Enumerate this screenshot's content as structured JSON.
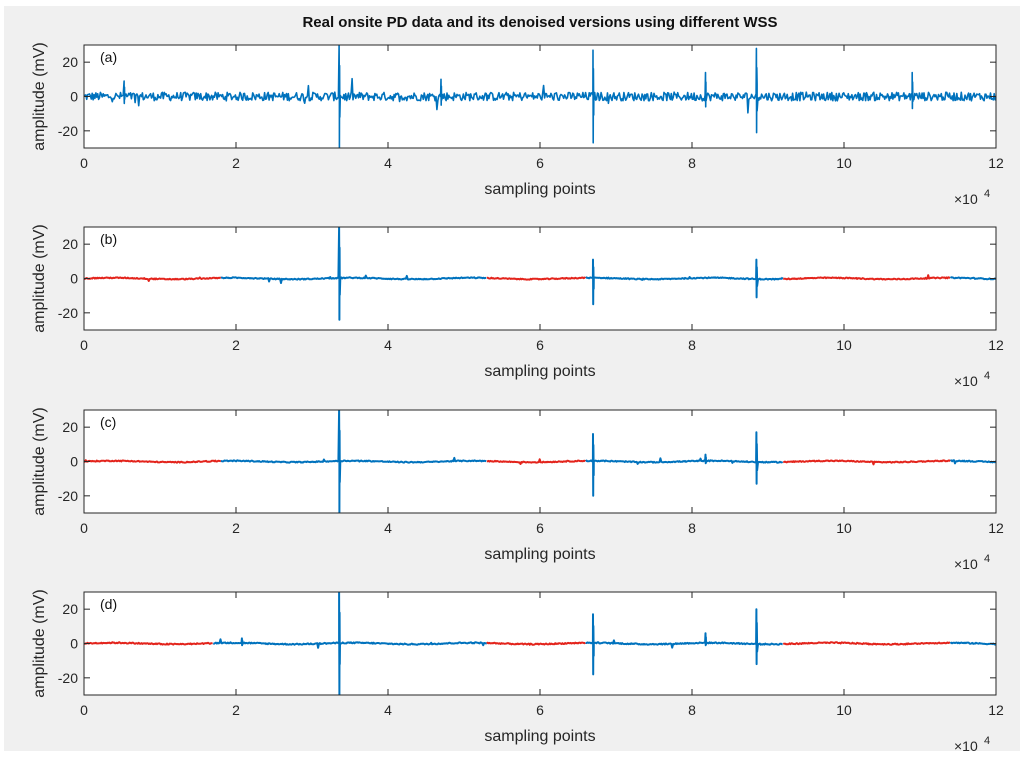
{
  "window": {
    "figure_title": "Real onsite PD data and its denoised versions using different WSS"
  },
  "colors": {
    "background": "#f0f0f0",
    "axes_face": "#ffffff",
    "axes_edge": "#262626",
    "signal_blue": "#0072bd",
    "signal_red": "#e3241c"
  },
  "chart_data": [
    {
      "type": "line",
      "panel_label": "(a)",
      "title": "Real onsite PD data and its denoised versions using different WSS",
      "xlabel": "sampling points",
      "ylabel": "amplitude (mV)",
      "x_exponent": "×10",
      "x_exponent_power": "4",
      "xlim": [
        0,
        120000
      ],
      "ylim": [
        -30,
        30
      ],
      "xticks": [
        0,
        20000,
        40000,
        60000,
        80000,
        100000,
        120000
      ],
      "xtick_labels": [
        "0",
        "2",
        "4",
        "6",
        "8",
        "10",
        "12"
      ],
      "yticks": [
        20,
        0,
        -20
      ],
      "ytick_labels": [
        "20",
        "0",
        "-20"
      ],
      "noise_level": 2.5,
      "series": [
        {
          "color": "#0072bd",
          "x_ranges": [
            [
              0,
              120000
            ]
          ]
        }
      ],
      "spikes": [
        {
          "x": 5300,
          "max": 9,
          "min": -4
        },
        {
          "x": 33600,
          "max": 30,
          "min": -30
        },
        {
          "x": 47000,
          "max": 10,
          "min": -5
        },
        {
          "x": 67000,
          "max": 27,
          "min": -27
        },
        {
          "x": 81800,
          "max": 14,
          "min": -6
        },
        {
          "x": 88500,
          "max": 28,
          "min": -21
        },
        {
          "x": 109000,
          "max": 14,
          "min": -7
        }
      ]
    },
    {
      "type": "line",
      "panel_label": "(b)",
      "xlabel": "sampling points",
      "ylabel": "amplitude (mV)",
      "x_exponent": "×10",
      "x_exponent_power": "4",
      "xlim": [
        0,
        120000
      ],
      "ylim": [
        -30,
        30
      ],
      "xticks": [
        0,
        20000,
        40000,
        60000,
        80000,
        100000,
        120000
      ],
      "xtick_labels": [
        "0",
        "2",
        "4",
        "6",
        "8",
        "10",
        "12"
      ],
      "yticks": [
        20,
        0,
        -20
      ],
      "ytick_labels": [
        "20",
        "0",
        "-20"
      ],
      "noise_level": 0.3,
      "series": [
        {
          "color": "#0072bd",
          "x_ranges": [
            [
              18000,
              53000
            ],
            [
              66000,
              92000
            ]
          ]
        },
        {
          "color": "#e3241c",
          "x_ranges": [
            [
              0,
              18000
            ],
            [
              53000,
              66000
            ],
            [
              92000,
              114000
            ]
          ]
        },
        {
          "color": "#0072bd",
          "x_ranges": [
            [
              114000,
              120000
            ]
          ]
        }
      ],
      "spikes": [
        {
          "x": 33600,
          "max": 30,
          "min": -24
        },
        {
          "x": 67000,
          "max": 11,
          "min": -15
        },
        {
          "x": 88500,
          "max": 11,
          "min": -11
        }
      ]
    },
    {
      "type": "line",
      "panel_label": "(c)",
      "xlabel": "sampling points",
      "ylabel": "amplitude (mV)",
      "x_exponent": "×10",
      "x_exponent_power": "4",
      "xlim": [
        0,
        120000
      ],
      "ylim": [
        -30,
        30
      ],
      "xticks": [
        0,
        20000,
        40000,
        60000,
        80000,
        100000,
        120000
      ],
      "xtick_labels": [
        "0",
        "2",
        "4",
        "6",
        "8",
        "10",
        "12"
      ],
      "yticks": [
        20,
        0,
        -20
      ],
      "ytick_labels": [
        "20",
        "0",
        "-20"
      ],
      "noise_level": 0.3,
      "series": [
        {
          "color": "#0072bd",
          "x_ranges": [
            [
              18000,
              53000
            ],
            [
              66000,
              92000
            ]
          ]
        },
        {
          "color": "#e3241c",
          "x_ranges": [
            [
              0,
              18000
            ],
            [
              53000,
              66000
            ],
            [
              92000,
              114000
            ]
          ]
        },
        {
          "color": "#0072bd",
          "x_ranges": [
            [
              114000,
              120000
            ]
          ]
        }
      ],
      "spikes": [
        {
          "x": 33600,
          "max": 30,
          "min": -30
        },
        {
          "x": 67000,
          "max": 16,
          "min": -20
        },
        {
          "x": 81800,
          "max": 4,
          "min": -1
        },
        {
          "x": 88500,
          "max": 17,
          "min": -13
        }
      ]
    },
    {
      "type": "line",
      "panel_label": "(d)",
      "xlabel": "sampling points",
      "ylabel": "amplitude (mV)",
      "x_exponent": "×10",
      "x_exponent_power": "4",
      "xlim": [
        0,
        120000
      ],
      "ylim": [
        -30,
        30
      ],
      "xticks": [
        0,
        20000,
        40000,
        60000,
        80000,
        100000,
        120000
      ],
      "xtick_labels": [
        "0",
        "2",
        "4",
        "6",
        "8",
        "10",
        "12"
      ],
      "yticks": [
        20,
        0,
        -20
      ],
      "ytick_labels": [
        "20",
        "0",
        "-20"
      ],
      "noise_level": 0.35,
      "series": [
        {
          "color": "#0072bd",
          "x_ranges": [
            [
              17000,
              53000
            ],
            [
              66000,
              92000
            ]
          ]
        },
        {
          "color": "#e3241c",
          "x_ranges": [
            [
              0,
              17000
            ],
            [
              53000,
              66000
            ],
            [
              92000,
              114000
            ]
          ]
        },
        {
          "color": "#0072bd",
          "x_ranges": [
            [
              114000,
              120000
            ]
          ]
        }
      ],
      "spikes": [
        {
          "x": 20800,
          "max": 3,
          "min": -1
        },
        {
          "x": 33600,
          "max": 30,
          "min": -30
        },
        {
          "x": 67000,
          "max": 17,
          "min": -18
        },
        {
          "x": 81800,
          "max": 6,
          "min": -1
        },
        {
          "x": 88500,
          "max": 20,
          "min": -12
        }
      ]
    }
  ]
}
